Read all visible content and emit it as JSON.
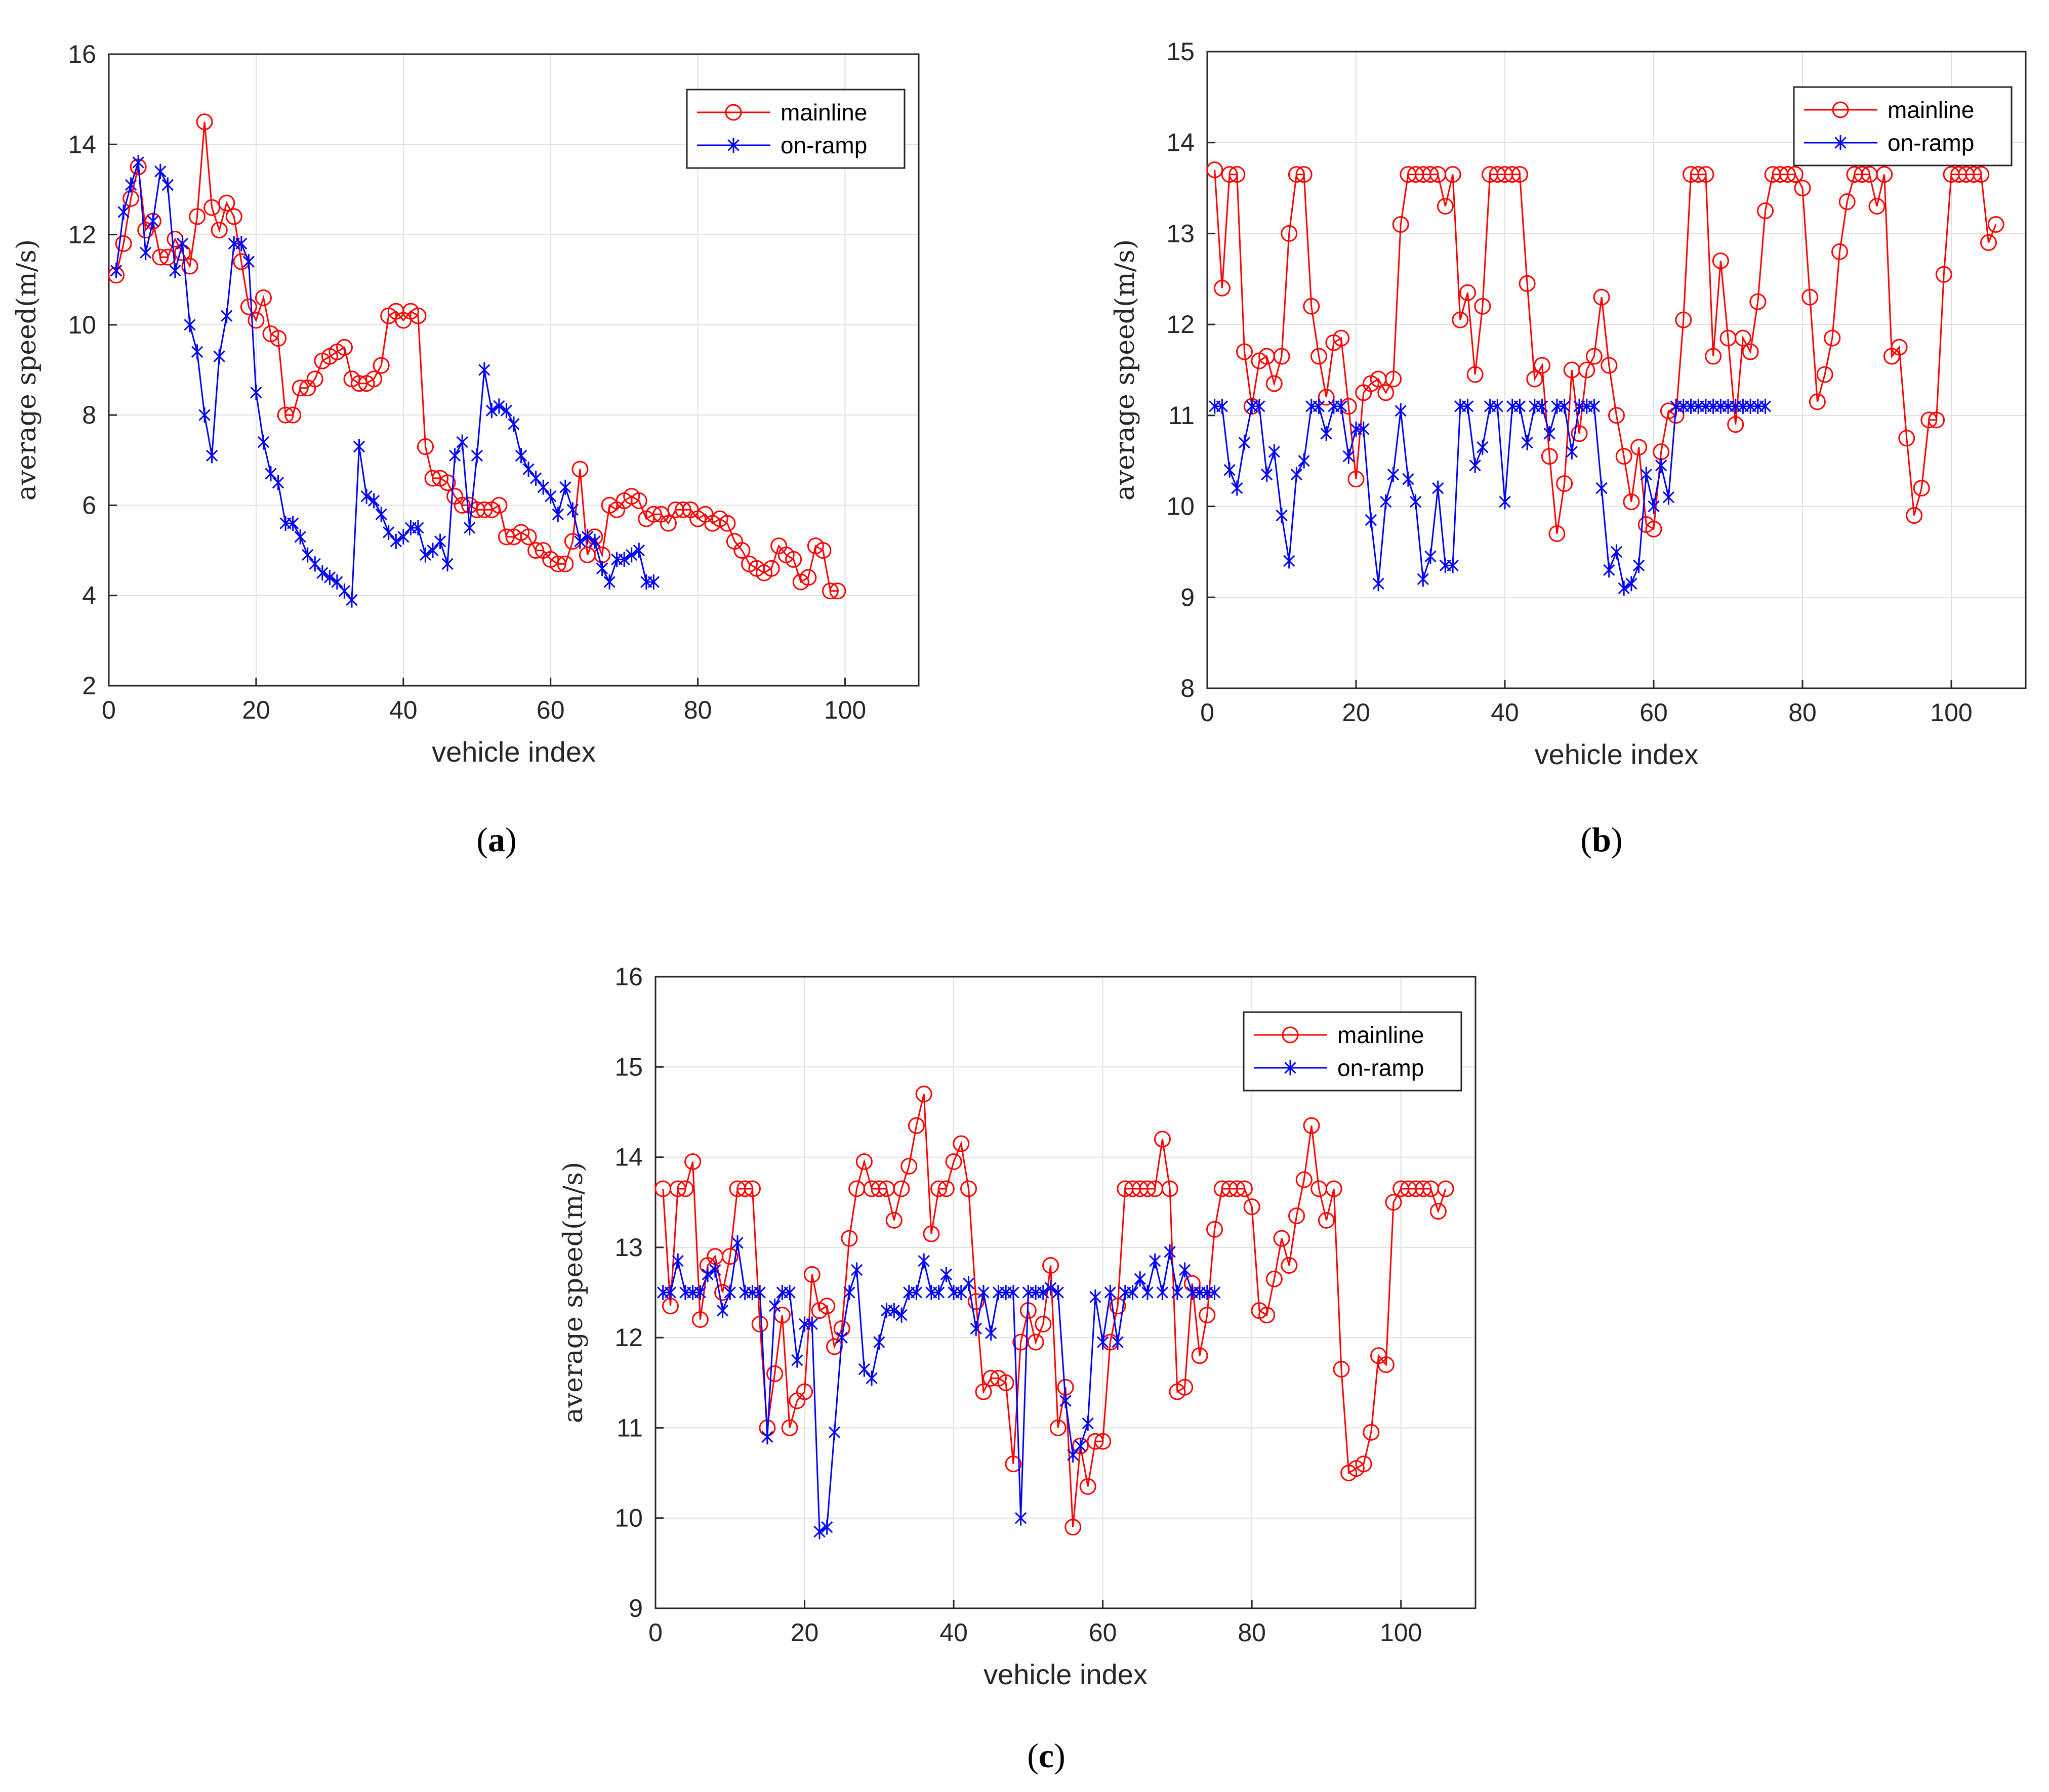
{
  "colors": {
    "mainline": "#ff0000",
    "onramp": "#0000ff",
    "grid": "#e0e0e0",
    "axis": "#262626"
  },
  "captions": {
    "a": "a",
    "b": "b",
    "c": "c"
  },
  "chart_data": [
    {
      "id": "a",
      "type": "line",
      "xlabel": "vehicle index",
      "ylabel": "average speed(m/s)",
      "xlim": [
        0,
        110
      ],
      "ylim": [
        2,
        16
      ],
      "xticks": [
        0,
        20,
        40,
        60,
        80,
        100
      ],
      "yticks": [
        2,
        4,
        6,
        8,
        10,
        12,
        14,
        16
      ],
      "legend": "top-right",
      "series": [
        {
          "name": "mainline",
          "marker": "circle",
          "values": [
            11.1,
            11.8,
            12.8,
            13.5,
            12.1,
            12.3,
            11.5,
            11.5,
            11.9,
            11.6,
            11.3,
            12.4,
            14.5,
            12.6,
            12.1,
            12.7,
            12.4,
            11.4,
            10.4,
            10.1,
            10.6,
            9.8,
            9.7,
            8.0,
            8.0,
            8.6,
            8.6,
            8.8,
            9.2,
            9.3,
            9.4,
            9.5,
            8.8,
            8.7,
            8.7,
            8.8,
            9.1,
            10.2,
            10.3,
            10.1,
            10.3,
            10.2,
            7.3,
            6.6,
            6.6,
            6.5,
            6.2,
            6.0,
            6.0,
            5.9,
            5.9,
            5.9,
            6.0,
            5.3,
            5.3,
            5.4,
            5.3,
            5.0,
            5.0,
            4.8,
            4.7,
            4.7,
            5.2,
            6.8,
            4.9,
            5.3,
            4.9,
            6.0,
            5.9,
            6.1,
            6.2,
            6.1,
            5.7,
            5.8,
            5.8,
            5.6,
            5.9,
            5.9,
            5.9,
            5.7,
            5.8,
            5.6,
            5.7,
            5.6,
            5.2,
            5.0,
            4.7,
            4.6,
            4.5,
            4.6,
            5.1,
            4.9,
            4.8,
            4.3,
            4.4,
            5.1,
            5.0,
            4.1,
            4.1
          ]
        },
        {
          "name": "on-ramp",
          "marker": "asterisk",
          "values": [
            11.2,
            12.5,
            13.1,
            13.6,
            11.6,
            12.3,
            13.4,
            13.1,
            11.2,
            11.8,
            10.0,
            9.4,
            8.0,
            7.1,
            9.3,
            10.2,
            11.8,
            11.8,
            11.4,
            8.5,
            7.4,
            6.7,
            6.5,
            5.6,
            5.6,
            5.3,
            4.9,
            4.7,
            4.5,
            4.4,
            4.3,
            4.1,
            3.9,
            7.3,
            6.2,
            6.1,
            5.8,
            5.4,
            5.2,
            5.3,
            5.5,
            5.5,
            4.9,
            5.0,
            5.2,
            4.7,
            7.1,
            7.4,
            5.5,
            7.1,
            9.0,
            8.1,
            8.2,
            8.1,
            7.8,
            7.1,
            6.8,
            6.6,
            6.4,
            6.2,
            5.8,
            6.4,
            5.9,
            5.2,
            5.3,
            5.2,
            4.6,
            4.3,
            4.8,
            4.8,
            4.9,
            5.0,
            4.3,
            4.3
          ]
        }
      ]
    },
    {
      "id": "b",
      "type": "line",
      "xlabel": "vehicle index",
      "ylabel": "average speed(m/s)",
      "xlim": [
        0,
        110
      ],
      "ylim": [
        8,
        15
      ],
      "xticks": [
        0,
        20,
        40,
        60,
        80,
        100
      ],
      "yticks": [
        8,
        9,
        10,
        11,
        12,
        13,
        14,
        15
      ],
      "legend": "top-right",
      "series": [
        {
          "name": "mainline",
          "marker": "circle",
          "values": [
            13.7,
            12.4,
            13.65,
            13.65,
            11.7,
            11.1,
            11.6,
            11.65,
            11.35,
            11.65,
            13.0,
            13.65,
            13.65,
            12.2,
            11.65,
            11.2,
            11.8,
            11.85,
            11.1,
            10.3,
            11.25,
            11.35,
            11.4,
            11.25,
            11.4,
            13.1,
            13.65,
            13.65,
            13.65,
            13.65,
            13.65,
            13.3,
            13.65,
            12.05,
            12.35,
            11.45,
            12.2,
            13.65,
            13.65,
            13.65,
            13.65,
            13.65,
            12.45,
            11.4,
            11.55,
            10.55,
            9.7,
            10.25,
            11.5,
            10.8,
            11.5,
            11.65,
            12.3,
            11.55,
            11.0,
            10.55,
            10.05,
            10.65,
            9.8,
            9.75,
            10.6,
            11.05,
            11.0,
            12.05,
            13.65,
            13.65,
            13.65,
            11.65,
            12.7,
            11.85,
            10.9,
            11.85,
            11.7,
            12.25,
            13.25,
            13.65,
            13.65,
            13.65,
            13.65,
            13.5,
            12.3,
            11.15,
            11.45,
            11.85,
            12.8,
            13.35,
            13.65,
            13.65,
            13.65,
            13.3,
            13.65,
            11.65,
            11.75,
            10.75,
            9.9,
            10.2,
            10.95,
            10.95,
            12.55,
            13.65,
            13.65,
            13.65,
            13.65,
            13.65,
            12.9,
            13.1
          ]
        },
        {
          "name": "on-ramp",
          "marker": "asterisk",
          "values": [
            11.1,
            11.1,
            10.4,
            10.2,
            10.7,
            11.1,
            11.1,
            10.35,
            10.6,
            9.9,
            9.4,
            10.35,
            10.5,
            11.1,
            11.1,
            10.8,
            11.1,
            11.1,
            10.55,
            10.85,
            10.85,
            9.85,
            9.15,
            10.05,
            10.35,
            11.05,
            10.3,
            10.05,
            9.2,
            9.45,
            10.2,
            9.35,
            9.35,
            11.1,
            11.1,
            10.45,
            10.65,
            11.1,
            11.1,
            10.05,
            11.1,
            11.1,
            10.7,
            11.1,
            11.1,
            10.8,
            11.1,
            11.1,
            10.6,
            11.1,
            11.1,
            11.1,
            10.2,
            9.3,
            9.5,
            9.1,
            9.15,
            9.35,
            10.35,
            10.0,
            10.45,
            10.1,
            11.1,
            11.1,
            11.1,
            11.1,
            11.1,
            11.1,
            11.1,
            11.1,
            11.1,
            11.1,
            11.1,
            11.1,
            11.1
          ]
        }
      ]
    },
    {
      "id": "c",
      "type": "line",
      "xlabel": "vehicle index",
      "ylabel": "average speed(m/s)",
      "xlim": [
        0,
        110
      ],
      "ylim": [
        9,
        16
      ],
      "xticks": [
        0,
        20,
        40,
        60,
        80,
        100
      ],
      "yticks": [
        9,
        10,
        11,
        12,
        13,
        14,
        15,
        16
      ],
      "legend": "top-right",
      "series": [
        {
          "name": "mainline",
          "marker": "circle",
          "values": [
            13.65,
            12.35,
            13.65,
            13.65,
            13.95,
            12.2,
            12.8,
            12.9,
            12.5,
            12.9,
            13.65,
            13.65,
            13.65,
            12.15,
            11.0,
            11.6,
            12.25,
            11.0,
            11.3,
            11.4,
            12.7,
            12.3,
            12.35,
            11.9,
            12.1,
            13.1,
            13.65,
            13.95,
            13.65,
            13.65,
            13.65,
            13.3,
            13.65,
            13.9,
            14.35,
            14.7,
            13.15,
            13.65,
            13.65,
            13.95,
            14.15,
            13.65,
            12.4,
            11.4,
            11.55,
            11.55,
            11.5,
            10.6,
            11.95,
            12.3,
            11.95,
            12.15,
            12.8,
            11.0,
            11.45,
            9.9,
            10.8,
            10.35,
            10.85,
            10.85,
            11.95,
            12.35,
            13.65,
            13.65,
            13.65,
            13.65,
            13.65,
            14.2,
            13.65,
            11.4,
            11.45,
            12.6,
            11.8,
            12.25,
            13.2,
            13.65,
            13.65,
            13.65,
            13.65,
            13.45,
            12.3,
            12.25,
            12.65,
            13.1,
            12.8,
            13.35,
            13.75,
            14.35,
            13.65,
            13.3,
            13.65,
            11.65,
            10.5,
            10.55,
            10.6,
            10.95,
            11.8,
            11.7,
            13.5,
            13.65,
            13.65,
            13.65,
            13.65,
            13.65,
            13.4,
            13.65
          ]
        },
        {
          "name": "on-ramp",
          "marker": "asterisk",
          "values": [
            12.5,
            12.5,
            12.85,
            12.5,
            12.5,
            12.5,
            12.7,
            12.75,
            12.3,
            12.5,
            13.05,
            12.5,
            12.5,
            12.5,
            10.9,
            12.35,
            12.5,
            12.5,
            11.75,
            12.15,
            12.15,
            9.85,
            9.9,
            10.95,
            12.0,
            12.5,
            12.75,
            11.65,
            11.55,
            11.95,
            12.3,
            12.3,
            12.25,
            12.5,
            12.5,
            12.85,
            12.5,
            12.5,
            12.7,
            12.5,
            12.5,
            12.6,
            12.1,
            12.5,
            12.05,
            12.5,
            12.5,
            12.5,
            10.0,
            12.5,
            12.5,
            12.5,
            12.55,
            12.5,
            11.3,
            10.7,
            10.8,
            11.05,
            12.45,
            11.95,
            12.5,
            11.95,
            12.5,
            12.5,
            12.65,
            12.5,
            12.85,
            12.5,
            12.95,
            12.5,
            12.75,
            12.5,
            12.5,
            12.5,
            12.5
          ]
        }
      ]
    }
  ]
}
